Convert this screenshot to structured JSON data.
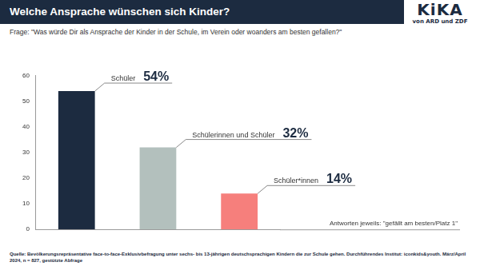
{
  "header": {
    "logo": "KiKA",
    "logo_subtitle": "von ARD und ZDF"
  },
  "chart_data": {
    "type": "bar",
    "title": "Welche Ansprache wünschen sich Kinder?",
    "subtitle": "Frage: \"Was würde Dir als Ansprache der Kinder in der Schule, im Verein oder woanders am besten gefallen?\"",
    "annotation": "Antworten jeweils: \"gefällt am besten/Platz 1\"",
    "source": "Quelle: Bevölkerungsrepräsentative face-to-face-Exklusivbefragung unter sechs- bis 13-jährigen deutschsprachigen Kindern die zur Schule gehen. Durchführendes Institut: iconkids&youth. März/April 2024, n = 827, gestützte Abfrage",
    "categories": [
      "Schüler",
      "Schülerinnen und Schüler",
      "Schüler*innen"
    ],
    "values": [
      54,
      32,
      14
    ],
    "value_labels": [
      "54%",
      "32%",
      "14%"
    ],
    "colors": [
      "#1c2b40",
      "#b3c0bd",
      "#f67f7c"
    ],
    "ylim": [
      0,
      60
    ],
    "yticks": [
      0,
      10,
      20,
      30,
      40,
      50,
      60
    ],
    "grid": false,
    "data_labels": true,
    "tick_labels": "y"
  }
}
